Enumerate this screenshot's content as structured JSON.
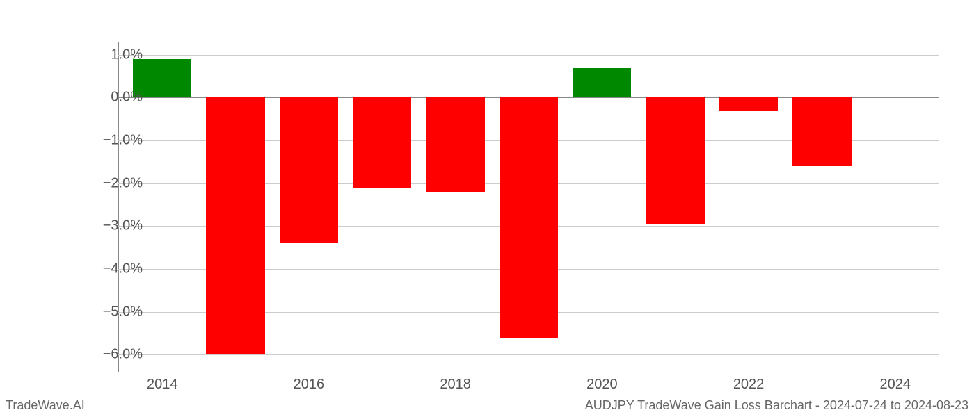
{
  "chart": {
    "type": "bar",
    "years": [
      2014,
      2015,
      2016,
      2017,
      2018,
      2019,
      2020,
      2021,
      2022,
      2023
    ],
    "values": [
      0.9,
      -6.0,
      -3.4,
      -2.1,
      -2.2,
      -5.6,
      0.68,
      -2.95,
      -0.3,
      -1.6
    ],
    "bar_colors": [
      "#008800",
      "#ff0000",
      "#ff0000",
      "#ff0000",
      "#ff0000",
      "#ff0000",
      "#008800",
      "#ff0000",
      "#ff0000",
      "#ff0000"
    ],
    "ylim": [
      -6.4,
      1.3
    ],
    "yticks": [
      -6.0,
      -5.0,
      -4.0,
      -3.0,
      -2.0,
      -1.0,
      0.0,
      1.0
    ],
    "ytick_labels": [
      "−6.0%",
      "−5.0%",
      "−4.0%",
      "−3.0%",
      "−2.0%",
      "−1.0%",
      "0.0%",
      "1.0%"
    ],
    "xlim": [
      2013.4,
      2024.6
    ],
    "xticks": [
      2014,
      2016,
      2018,
      2020,
      2022,
      2024
    ],
    "xtick_labels": [
      "2014",
      "2016",
      "2018",
      "2020",
      "2022",
      "2024"
    ],
    "bar_width_years": 0.8,
    "grid_color": "#cccccc",
    "axis_color": "#888888",
    "background_color": "#ffffff",
    "tick_fontsize": 20,
    "footer_fontsize": 18
  },
  "footer": {
    "left": "TradeWave.AI",
    "right": "AUDJPY TradeWave Gain Loss Barchart - 2024-07-24 to 2024-08-23"
  }
}
